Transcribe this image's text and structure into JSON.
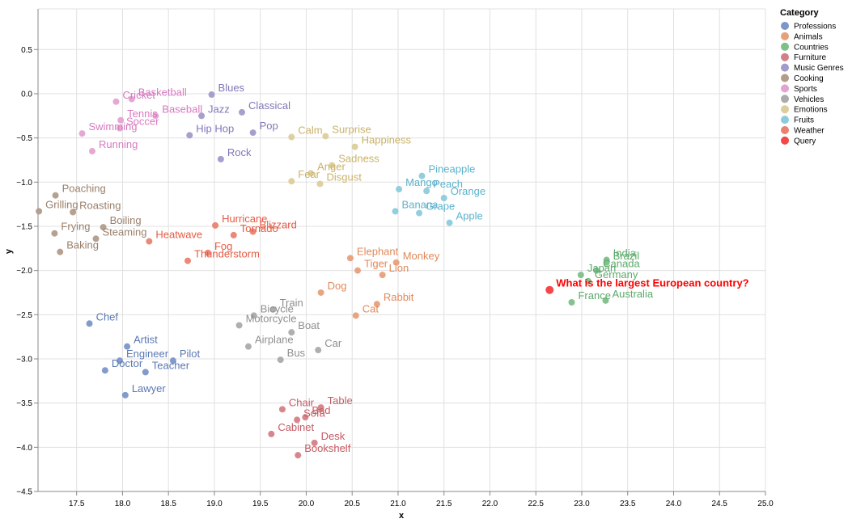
{
  "chart_data": {
    "type": "scatter",
    "title": "",
    "xlabel": "x",
    "ylabel": "y",
    "xlim": [
      17.08,
      25.0
    ],
    "ylim": [
      -4.5,
      0.96
    ],
    "grid": true,
    "x_ticks": [
      "17.5",
      "18.0",
      "18.5",
      "19.0",
      "19.5",
      "20.0",
      "20.5",
      "21.0",
      "21.5",
      "22.0",
      "22.5",
      "23.0",
      "23.5",
      "24.0",
      "24.5",
      "25.0"
    ],
    "y_ticks": [
      "0.5",
      "0.0",
      "−0.5",
      "−1.0",
      "−1.5",
      "−2.0",
      "−2.5",
      "−3.0",
      "−3.5",
      "−4.0",
      "−4.5"
    ],
    "legend": {
      "title": "Category",
      "placement": "top-right",
      "entries": [
        {
          "name": "Professions",
          "color": "#7b96c9"
        },
        {
          "name": "Animals",
          "color": "#e8a07a"
        },
        {
          "name": "Countries",
          "color": "#7fbf8a"
        },
        {
          "name": "Furniture",
          "color": "#d47f86"
        },
        {
          "name": "Music Genres",
          "color": "#a19bcb"
        },
        {
          "name": "Cooking",
          "color": "#b29c8a"
        },
        {
          "name": "Sports",
          "color": "#e3a3d1"
        },
        {
          "name": "Vehicles",
          "color": "#ababab"
        },
        {
          "name": "Emotions",
          "color": "#dccd9a"
        },
        {
          "name": "Fruits",
          "color": "#8ccbdc"
        },
        {
          "name": "Weather",
          "color": "#ea8271"
        },
        {
          "name": "Query",
          "color": "#f34848"
        }
      ]
    },
    "label_colors": {
      "Professions": "#5a78b3",
      "Animals": "#e0895c",
      "Countries": "#5aaa6a",
      "Furniture": "#c45a63",
      "Music Genres": "#7f77b8",
      "Cooking": "#9a7f6a",
      "Sports": "#d879c0",
      "Vehicles": "#8f8f8f",
      "Emotions": "#c9b26a",
      "Fruits": "#5cb2cc",
      "Weather": "#e55a42",
      "Query": "#ff0000"
    },
    "series": [
      {
        "name": "Professions",
        "points": [
          {
            "label": "Chef",
            "x": 17.64,
            "y": -2.6
          },
          {
            "label": "Artist",
            "x": 18.05,
            "y": -2.86
          },
          {
            "label": "Engineer",
            "x": 17.97,
            "y": -3.02
          },
          {
            "label": "Pilot",
            "x": 18.55,
            "y": -3.02
          },
          {
            "label": "Doctor",
            "x": 17.81,
            "y": -3.13
          },
          {
            "label": "Teacher",
            "x": 18.25,
            "y": -3.15
          },
          {
            "label": "Lawyer",
            "x": 18.03,
            "y": -3.41
          }
        ]
      },
      {
        "name": "Animals",
        "points": [
          {
            "label": "Elephant",
            "x": 20.48,
            "y": -1.86
          },
          {
            "label": "Monkey",
            "x": 20.98,
            "y": -1.91
          },
          {
            "label": "Tiger",
            "x": 20.56,
            "y": -2.0
          },
          {
            "label": "Lion",
            "x": 20.83,
            "y": -2.05
          },
          {
            "label": "Dog",
            "x": 20.16,
            "y": -2.25
          },
          {
            "label": "Rabbit",
            "x": 20.77,
            "y": -2.38
          },
          {
            "label": "Cat",
            "x": 20.54,
            "y": -2.51
          }
        ]
      },
      {
        "name": "Countries",
        "points": [
          {
            "label": "India",
            "x": 23.27,
            "y": -1.88
          },
          {
            "label": "Brazil",
            "x": 23.27,
            "y": -1.91
          },
          {
            "label": "Japan",
            "x": 22.99,
            "y": -2.05
          },
          {
            "label": "Canada",
            "x": 23.16,
            "y": -2.0
          },
          {
            "label": "Germany",
            "x": 23.07,
            "y": -2.12
          },
          {
            "label": "France",
            "x": 22.89,
            "y": -2.36
          },
          {
            "label": "Australia",
            "x": 23.26,
            "y": -2.34
          }
        ]
      },
      {
        "name": "Furniture",
        "points": [
          {
            "label": "Chair",
            "x": 19.74,
            "y": -3.57
          },
          {
            "label": "Table",
            "x": 20.16,
            "y": -3.55
          },
          {
            "label": "Bed",
            "x": 19.99,
            "y": -3.66
          },
          {
            "label": "Sofa",
            "x": 19.9,
            "y": -3.69
          },
          {
            "label": "Cabinet",
            "x": 19.62,
            "y": -3.85
          },
          {
            "label": "Desk",
            "x": 20.09,
            "y": -3.95
          },
          {
            "label": "Bookshelf",
            "x": 19.91,
            "y": -4.09
          }
        ]
      },
      {
        "name": "Music Genres",
        "points": [
          {
            "label": "Blues",
            "x": 18.97,
            "y": -0.01
          },
          {
            "label": "Jazz",
            "x": 18.86,
            "y": -0.25
          },
          {
            "label": "Classical",
            "x": 19.3,
            "y": -0.21
          },
          {
            "label": "Hip Hop",
            "x": 18.73,
            "y": -0.47
          },
          {
            "label": "Pop",
            "x": 19.42,
            "y": -0.44
          },
          {
            "label": "Rock",
            "x": 19.07,
            "y": -0.74
          }
        ]
      },
      {
        "name": "Cooking",
        "points": [
          {
            "label": "Poaching",
            "x": 17.27,
            "y": -1.15
          },
          {
            "label": "Grilling",
            "x": 17.09,
            "y": -1.33
          },
          {
            "label": "Roasting",
            "x": 17.46,
            "y": -1.34
          },
          {
            "label": "Boiling",
            "x": 17.79,
            "y": -1.51
          },
          {
            "label": "Frying",
            "x": 17.26,
            "y": -1.58
          },
          {
            "label": "Steaming",
            "x": 17.71,
            "y": -1.64
          },
          {
            "label": "Baking",
            "x": 17.32,
            "y": -1.79
          }
        ]
      },
      {
        "name": "Sports",
        "points": [
          {
            "label": "Cricket",
            "x": 17.93,
            "y": -0.09
          },
          {
            "label": "Basketball",
            "x": 18.1,
            "y": -0.06
          },
          {
            "label": "Baseball",
            "x": 18.36,
            "y": -0.25
          },
          {
            "label": "Tennis",
            "x": 17.98,
            "y": -0.3
          },
          {
            "label": "Soccer",
            "x": 17.97,
            "y": -0.39
          },
          {
            "label": "Swimming",
            "x": 17.56,
            "y": -0.45
          },
          {
            "label": "Running",
            "x": 17.67,
            "y": -0.65
          }
        ]
      },
      {
        "name": "Vehicles",
        "points": [
          {
            "label": "Train",
            "x": 19.64,
            "y": -2.44
          },
          {
            "label": "Bicycle",
            "x": 19.43,
            "y": -2.51
          },
          {
            "label": "Motorcycle",
            "x": 19.27,
            "y": -2.62
          },
          {
            "label": "Boat",
            "x": 19.84,
            "y": -2.7
          },
          {
            "label": "Airplane",
            "x": 19.37,
            "y": -2.86
          },
          {
            "label": "Car",
            "x": 20.13,
            "y": -2.9
          },
          {
            "label": "Bus",
            "x": 19.72,
            "y": -3.01
          }
        ]
      },
      {
        "name": "Emotions",
        "points": [
          {
            "label": "Calm",
            "x": 19.84,
            "y": -0.49
          },
          {
            "label": "Surprise",
            "x": 20.21,
            "y": -0.48
          },
          {
            "label": "Happiness",
            "x": 20.53,
            "y": -0.6
          },
          {
            "label": "Sadness",
            "x": 20.28,
            "y": -0.81
          },
          {
            "label": "Anger",
            "x": 20.05,
            "y": -0.9
          },
          {
            "label": "Fear",
            "x": 19.84,
            "y": -0.99
          },
          {
            "label": "Disgust",
            "x": 20.15,
            "y": -1.02
          }
        ]
      },
      {
        "name": "Fruits",
        "points": [
          {
            "label": "Pineapple",
            "x": 21.26,
            "y": -0.93
          },
          {
            "label": "Mango",
            "x": 21.01,
            "y": -1.08
          },
          {
            "label": "Peach",
            "x": 21.31,
            "y": -1.1
          },
          {
            "label": "Orange",
            "x": 21.5,
            "y": -1.18
          },
          {
            "label": "Banana",
            "x": 20.97,
            "y": -1.33
          },
          {
            "label": "Grape",
            "x": 21.23,
            "y": -1.35
          },
          {
            "label": "Apple",
            "x": 21.56,
            "y": -1.46
          }
        ]
      },
      {
        "name": "Weather",
        "points": [
          {
            "label": "Hurricane",
            "x": 19.01,
            "y": -1.49
          },
          {
            "label": "Tornado",
            "x": 19.21,
            "y": -1.6
          },
          {
            "label": "Blizzard",
            "x": 19.42,
            "y": -1.56
          },
          {
            "label": "Heatwave",
            "x": 18.29,
            "y": -1.67
          },
          {
            "label": "Fog",
            "x": 18.93,
            "y": -1.8
          },
          {
            "label": "Thunderstorm",
            "x": 18.71,
            "y": -1.89
          }
        ]
      },
      {
        "name": "Query",
        "points": [
          {
            "label": "What is the largest European country?",
            "x": 22.65,
            "y": -2.22
          }
        ]
      }
    ]
  }
}
